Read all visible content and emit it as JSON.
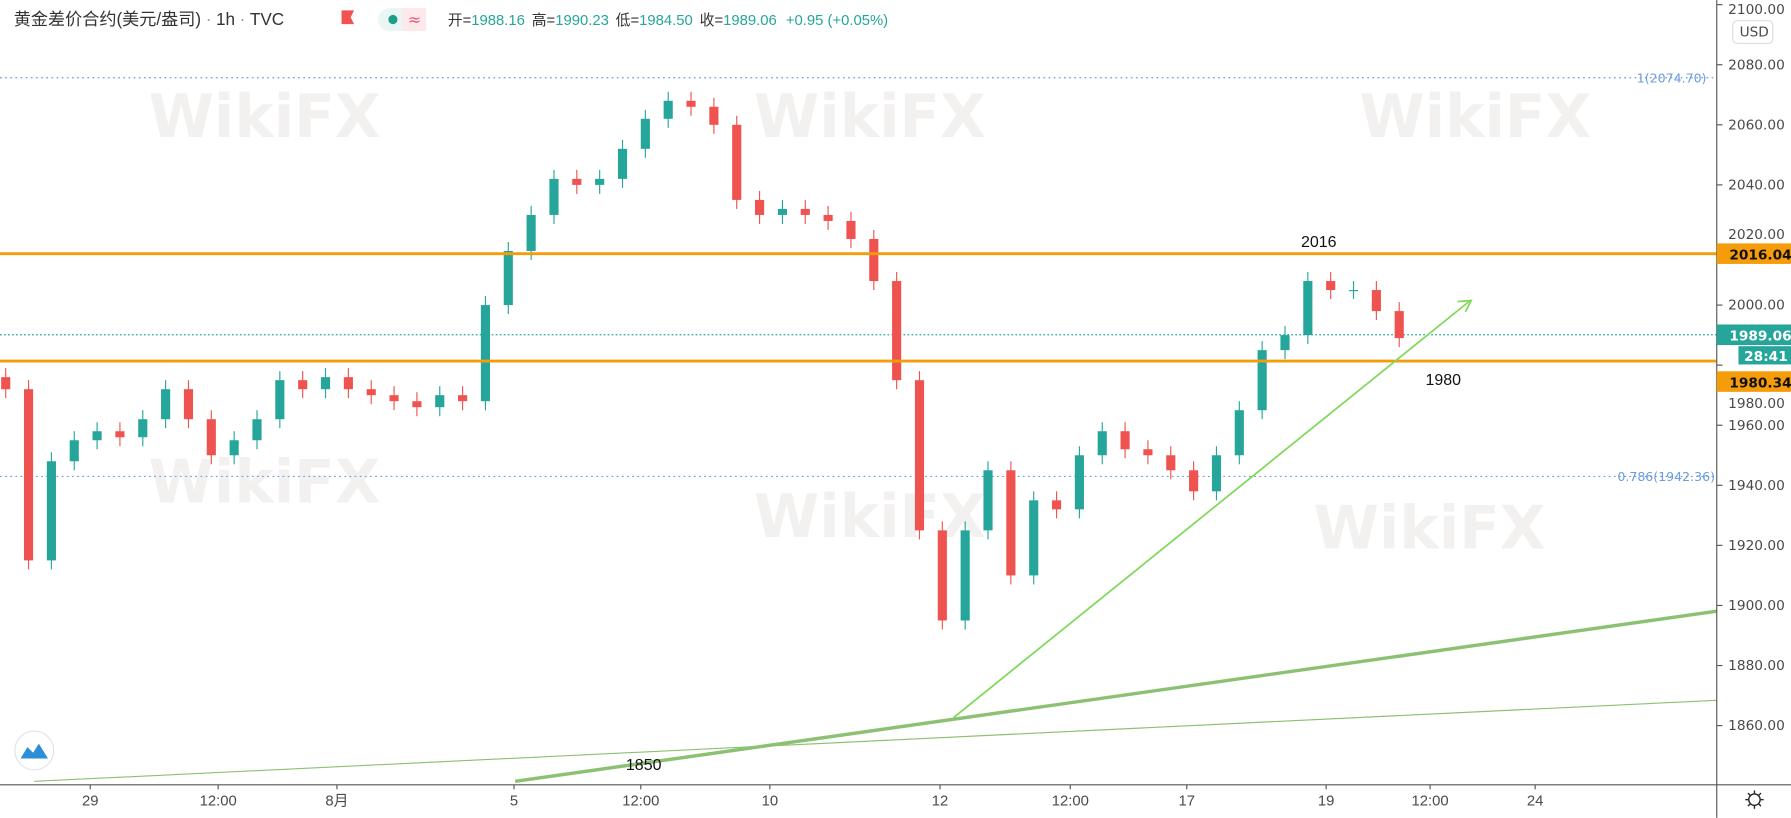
{
  "header": {
    "symbol": "黄金差价合约(美元/盎司)",
    "sep1": "·",
    "interval": "1h",
    "sep2": "·",
    "source": "TVC",
    "pill_wave": "≈",
    "open_label": "开=",
    "open": "1988.16",
    "high_label": "高=",
    "high": "1990.23",
    "low_label": "低=",
    "low": "1984.50",
    "close_label": "收=",
    "close": "1989.06",
    "change": "+0.95 (+0.05%)"
  },
  "currency_button": "USD",
  "watermark": "WikiFX",
  "colors": {
    "up": "#26a69a",
    "down": "#ef5350",
    "level": "#f59c0a",
    "fib": "#6b9be0",
    "trend": "#7ed957",
    "thick_trend": "#8cc072"
  },
  "chart_data": {
    "type": "candlestick",
    "title": "黄金差价合约(美元/盎司)",
    "interval": "1h",
    "ylim": [
      1845,
      2105
    ],
    "y_ticks": [
      "2100.00",
      "2080.00",
      "2060.00",
      "2040.00",
      "2020.00",
      "2000.00",
      "1980.00",
      "1960.00",
      "1940.00",
      "1920.00",
      "1900.00",
      "1880.00",
      "1860.00"
    ],
    "x_ticks": [
      "29",
      "12:00",
      "8月",
      "5",
      "12:00",
      "10",
      "12",
      "12:00",
      "17",
      "19",
      "12:00",
      "24"
    ],
    "grid": false,
    "close": [
      1972,
      1915,
      1948,
      1955,
      1958,
      1956,
      1962,
      1972,
      1962,
      1950,
      1955,
      1962,
      1975,
      1972,
      1976,
      1972,
      1970,
      1968,
      1966,
      1970,
      1968,
      2000,
      2018,
      2030,
      2042,
      2040,
      2042,
      2052,
      2062,
      2068,
      2066,
      2060,
      2035,
      2030,
      2032,
      2030,
      2028,
      2022,
      2008,
      1975,
      1925,
      1895,
      1925,
      1945,
      1910,
      1935,
      1932,
      1950,
      1958,
      1952,
      1950,
      1945,
      1938,
      1950,
      1965,
      1985,
      1990,
      2008,
      2005,
      2005,
      1998,
      1989
    ],
    "levels": {
      "resistance": "2016.04",
      "support": "1980.34",
      "last_price": "1989.06",
      "countdown": "28:41",
      "fib_1": "1(2074.70)",
      "fib_0786": "0.786(1942.36)"
    },
    "annotations": [
      "2016",
      "1980",
      "1850"
    ]
  }
}
